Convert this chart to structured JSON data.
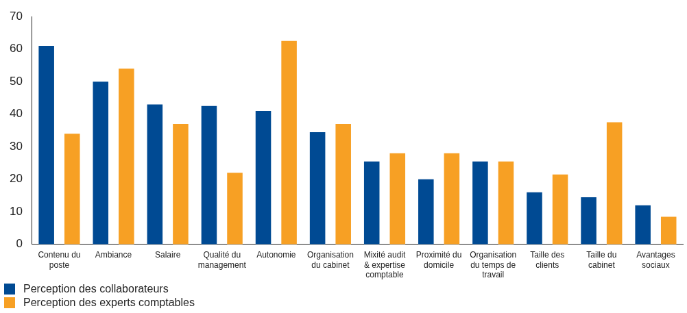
{
  "chart_data": {
    "type": "bar",
    "categories": [
      "Contenu du poste",
      "Ambiance",
      "Salaire",
      "Qualité du management",
      "Autonomie",
      "Organisation du cabinet",
      "Mixité audit & expertise comptable",
      "Proximité du domicile",
      "Organisation du temps de travail",
      "Taille des clients",
      "Taille du cabinet",
      "Avantages sociaux"
    ],
    "series": [
      {
        "name": "Perception des collaborateurs",
        "color": "#004a93",
        "values": [
          61,
          50,
          43,
          42.5,
          41,
          34.5,
          25.5,
          20,
          25.5,
          16,
          14.5,
          12
        ]
      },
      {
        "name": "Perception des experts comptables",
        "color": "#f7a024",
        "values": [
          34,
          54,
          37,
          22,
          62.5,
          37,
          28,
          28,
          25.5,
          21.5,
          37.5,
          8.5
        ]
      }
    ],
    "ylim": [
      0,
      70
    ],
    "yticks": [
      0,
      10,
      20,
      30,
      40,
      50,
      60,
      70
    ],
    "grid": false,
    "legend": "bottom left"
  }
}
